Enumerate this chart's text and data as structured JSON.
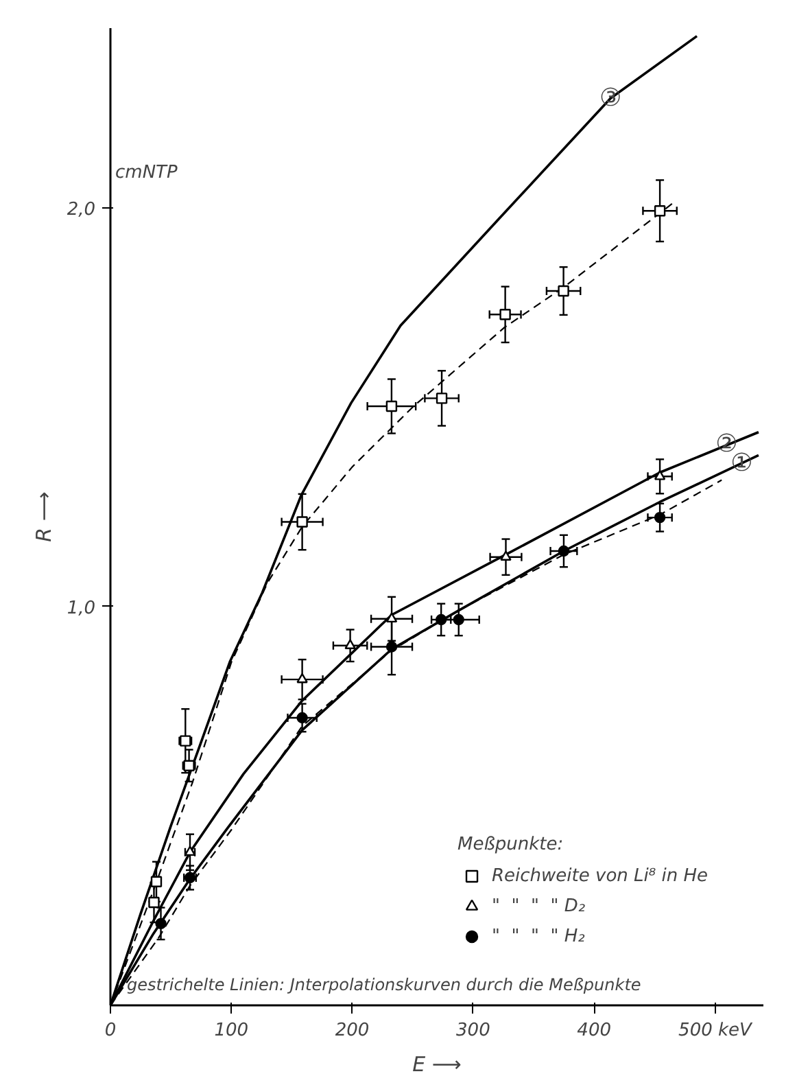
{
  "chart_data": {
    "type": "line",
    "xlabel": "E ⟶",
    "ylabel": "R ⟶",
    "xlim": [
      0,
      540
    ],
    "ylim": [
      0,
      2.45
    ],
    "xticks": [
      0,
      100,
      200,
      300,
      400,
      {
        "value": 500,
        "label": "500 keV"
      }
    ],
    "yticks": [
      {
        "value": 1,
        "label": "1,0"
      },
      {
        "value": 2,
        "label": "2,0"
      }
    ],
    "legend": "bottom right",
    "legend_title": "Meßpunkte:",
    "grid": false,
    "annotations": [
      "cmNTP",
      "gestrichelte Linien: Jnterpolationskurven durch die Meßpunkte",
      {
        "text": "③",
        "x": 413.6,
        "y": 2.274
      },
      {
        "text": "②",
        "x": 509.6,
        "y": 1.407
      },
      {
        "text": "①",
        "x": 522,
        "y": 1.36
      }
    ],
    "series": [
      {
        "color": "#000000",
        "line_style": "solid",
        "x": [
          0,
          25,
          50,
          75,
          99,
          125.5,
          158,
          199,
          239.9,
          321.6,
          413.6,
          485
        ],
        "values": [
          0,
          0.23,
          0.45,
          0.66,
          0.863,
          1.034,
          1.28,
          1.51,
          1.704,
          1.973,
          2.274,
          2.43
        ]
      },
      {
        "color": "#000000",
        "line_style": "solid",
        "x": [
          0,
          35.6,
          65.8,
          110,
          158.6,
          232.6,
          327,
          454.4,
          536
        ],
        "values": [
          0,
          0.212,
          0.384,
          0.58,
          0.764,
          0.979,
          1.13,
          1.336,
          1.437
        ]
      },
      {
        "color": "#000000",
        "line_style": "solid",
        "x": [
          0,
          35.6,
          65.8,
          97,
          158.6,
          232.6,
          288,
          374.9,
          454.4,
          536
        ],
        "values": [
          0,
          0.18,
          0.317,
          0.445,
          0.69,
          0.893,
          0.99,
          1.139,
          1.262,
          1.379
        ]
      },
      {
        "color": "#000000",
        "line_style": "dashed",
        "x": [
          0,
          37,
          68,
          100,
          130,
          158.6,
          200,
          250,
          326,
          374.7,
          468
        ],
        "values": [
          0,
          0.3,
          0.56,
          0.86,
          1.06,
          1.2,
          1.35,
          1.5,
          1.7,
          1.8,
          2.018
        ]
      },
      {
        "color": "#000000",
        "line_style": "dashed",
        "x": [
          0,
          40,
          65.8,
          100,
          158.6,
          232.6,
          288,
          374.9,
          454.4,
          505.5
        ],
        "values": [
          0,
          0.17,
          0.3,
          0.44,
          0.7,
          0.89,
          0.99,
          1.13,
          1.23,
          1.317
        ]
      },
      {
        "type": "scatter",
        "marker": "square",
        "name": "Reichweite von Li⁸ in He",
        "color": "#000000",
        "x": [
          36,
          38,
          62,
          65,
          158.6,
          232.5,
          274,
          326.5,
          374.7,
          454.4
        ],
        "values": [
          0.258,
          0.31,
          0.663,
          0.601,
          1.212,
          1.502,
          1.522,
          1.732,
          1.791,
          1.992
        ],
        "errors": [
          0.05,
          0.05,
          0.08,
          0.04,
          0.07,
          0.068,
          0.069,
          0.07,
          0.06,
          0.077
        ],
        "xerrors": [
          null,
          null,
          5,
          5,
          17,
          20,
          14,
          13,
          14,
          14
        ]
      },
      {
        "type": "scatter",
        "marker": "triangle",
        "name": "\"  \"  \"  \" D₂",
        "color": "#000000",
        "x": [
          65.8,
          158.6,
          198.3,
          232.6,
          327,
          454.4
        ],
        "values": [
          0.384,
          0.817,
          0.902,
          0.969,
          1.124,
          1.326
        ],
        "errors": [
          0.045,
          0.05,
          0.04,
          0.055,
          0.045,
          0.043
        ],
        "xerrors": [
          4,
          17,
          14,
          17,
          13,
          10
        ]
      },
      {
        "type": "scatter",
        "marker": "circle",
        "name": "\"  \"  \"  \" H₂",
        "color": "#000000",
        "x": [
          41.7,
          65.8,
          158.6,
          232.6,
          273.5,
          288,
          374.9,
          454.4
        ],
        "values": [
          0.205,
          0.32,
          0.721,
          0.899,
          0.967,
          0.967,
          1.139,
          1.223
        ],
        "errors": [
          0.04,
          0.03,
          0.035,
          0.07,
          0.04,
          0.04,
          0.04,
          0.035
        ],
        "xerrors": [
          null,
          5,
          12,
          17,
          8,
          17,
          11,
          10
        ]
      }
    ]
  }
}
